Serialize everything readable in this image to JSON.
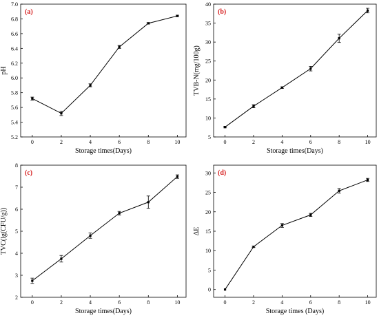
{
  "chart_data": [
    {
      "type": "line",
      "panel_label": "(a)",
      "xlabel": "Storage times(Days)",
      "ylabel": "pH",
      "x": [
        0,
        2,
        4,
        6,
        8,
        10
      ],
      "values": [
        5.72,
        5.52,
        5.9,
        6.42,
        6.74,
        6.84
      ],
      "errors": [
        0.02,
        0.03,
        0.02,
        0.02,
        0.01,
        0.01
      ],
      "xlim": [
        -0.8,
        10.6
      ],
      "ylim": [
        5.2,
        7.0
      ],
      "xticks": [
        0,
        2,
        4,
        6,
        8,
        10
      ],
      "yticks": [
        5.2,
        5.4,
        5.6,
        5.8,
        6.0,
        6.2,
        6.4,
        6.6,
        6.8,
        7.0
      ],
      "ytick_decimals": 1,
      "grid": false
    },
    {
      "type": "line",
      "panel_label": "(b)",
      "xlabel": "Storage times(Days)",
      "ylabel": "TVB-N(mg/100g)",
      "x": [
        0,
        2,
        4,
        6,
        8,
        10
      ],
      "values": [
        7.6,
        13.1,
        18.0,
        23.0,
        31.0,
        38.3
      ],
      "errors": [
        0.2,
        0.4,
        0.2,
        0.6,
        1.1,
        0.6
      ],
      "xlim": [
        -0.8,
        10.6
      ],
      "ylim": [
        5,
        40
      ],
      "xticks": [
        0,
        2,
        4,
        6,
        8,
        10
      ],
      "yticks": [
        5,
        10,
        15,
        20,
        25,
        30,
        35,
        40
      ],
      "ytick_decimals": 0,
      "grid": false
    },
    {
      "type": "line",
      "panel_label": "(c)",
      "xlabel": "Storage times(Days)",
      "ylabel": "TVC(lg(CFU/g))",
      "x": [
        0,
        2,
        4,
        6,
        8,
        10
      ],
      "values": [
        2.75,
        3.75,
        4.8,
        5.82,
        6.32,
        7.48
      ],
      "errors": [
        0.12,
        0.15,
        0.12,
        0.08,
        0.28,
        0.08
      ],
      "xlim": [
        -0.8,
        10.6
      ],
      "ylim": [
        2,
        8
      ],
      "xticks": [
        0,
        2,
        4,
        6,
        8,
        10
      ],
      "yticks": [
        2,
        3,
        4,
        5,
        6,
        7,
        8
      ],
      "ytick_decimals": 0,
      "grid": false
    },
    {
      "type": "line",
      "panel_label": "(d)",
      "xlabel": "Storage times (Days)",
      "ylabel": "ΔE",
      "x": [
        0,
        2,
        4,
        6,
        8,
        10
      ],
      "values": [
        0.0,
        11.0,
        16.5,
        19.2,
        25.4,
        28.2
      ],
      "errors": [
        0.0,
        0.2,
        0.5,
        0.4,
        0.6,
        0.4
      ],
      "xlim": [
        -0.8,
        10.6
      ],
      "ylim": [
        -2,
        32
      ],
      "xticks": [
        0,
        2,
        4,
        6,
        8,
        10
      ],
      "yticks": [
        0,
        5,
        10,
        15,
        20,
        25,
        30
      ],
      "ytick_decimals": 0,
      "grid": false
    }
  ]
}
